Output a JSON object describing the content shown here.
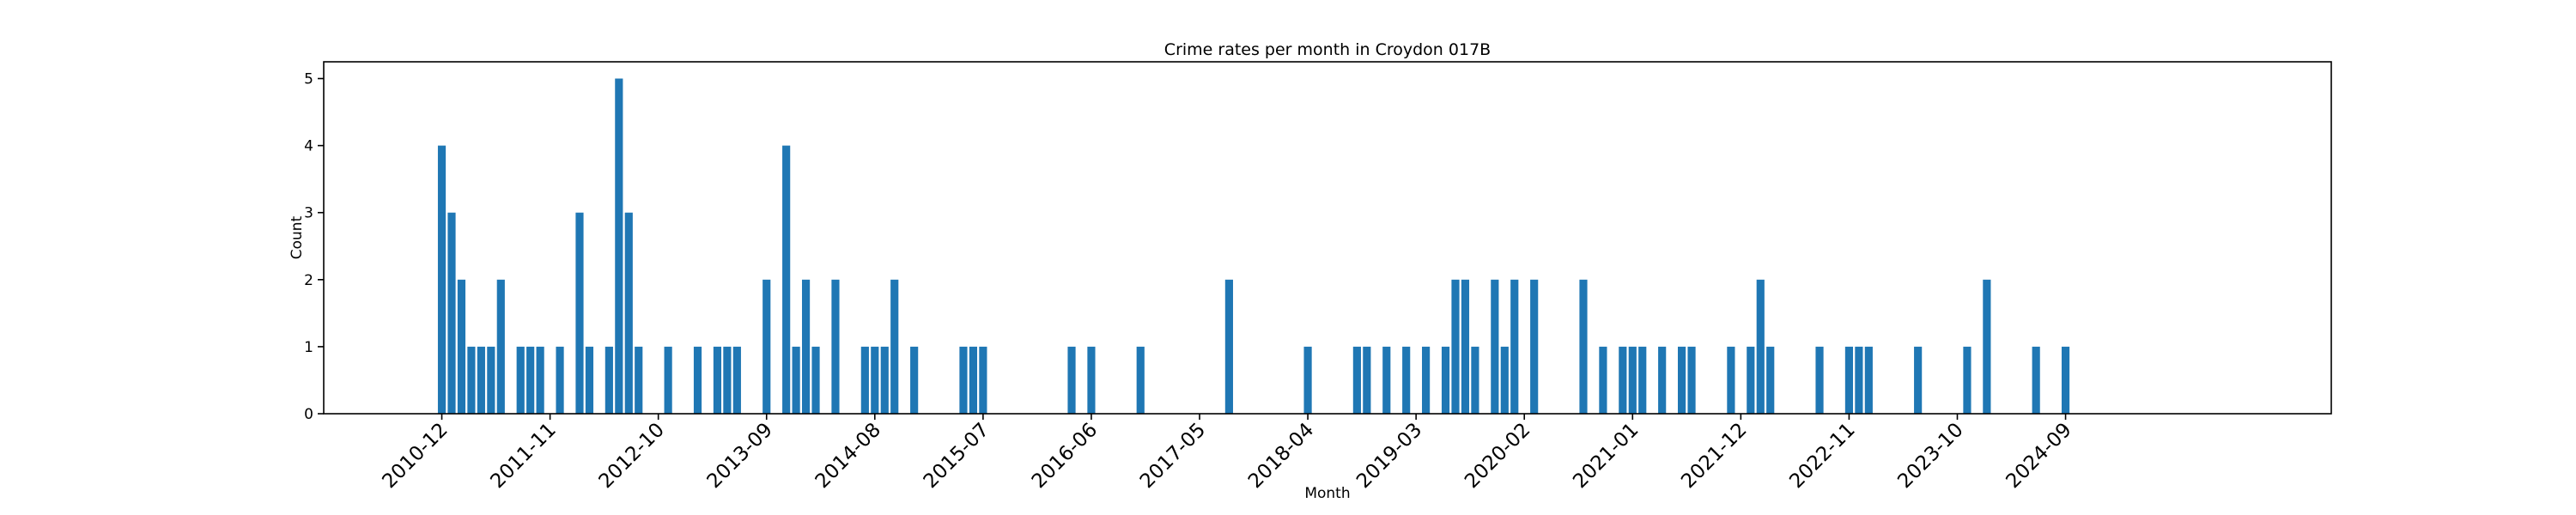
{
  "chart_data": {
    "type": "bar",
    "title": "Crime rates per month in Croydon 017B",
    "xlabel": "Month",
    "ylabel": "Count",
    "ylim": [
      0,
      5.25
    ],
    "xlim": [
      "2009-12",
      "2026-12"
    ],
    "yticks": [
      0,
      1,
      2,
      3,
      4,
      5
    ],
    "xticks": [
      "2010-12",
      "2011-11",
      "2012-10",
      "2013-09",
      "2014-08",
      "2015-07",
      "2016-06",
      "2017-05",
      "2018-04",
      "2019-03",
      "2020-02",
      "2021-01",
      "2021-12",
      "2022-11",
      "2023-10",
      "2024-09"
    ],
    "grid": false,
    "legend": "none",
    "bar_color": "#1f77b4",
    "points": [
      {
        "x": "2010-12",
        "y": 4
      },
      {
        "x": "2011-01",
        "y": 3
      },
      {
        "x": "2011-02",
        "y": 2
      },
      {
        "x": "2011-03",
        "y": 1
      },
      {
        "x": "2011-04",
        "y": 1
      },
      {
        "x": "2011-05",
        "y": 1
      },
      {
        "x": "2011-06",
        "y": 2
      },
      {
        "x": "2011-08",
        "y": 1
      },
      {
        "x": "2011-09",
        "y": 1
      },
      {
        "x": "2011-10",
        "y": 1
      },
      {
        "x": "2011-12",
        "y": 1
      },
      {
        "x": "2012-02",
        "y": 3
      },
      {
        "x": "2012-03",
        "y": 1
      },
      {
        "x": "2012-05",
        "y": 1
      },
      {
        "x": "2012-06",
        "y": 5
      },
      {
        "x": "2012-07",
        "y": 3
      },
      {
        "x": "2012-08",
        "y": 1
      },
      {
        "x": "2012-11",
        "y": 1
      },
      {
        "x": "2013-02",
        "y": 1
      },
      {
        "x": "2013-04",
        "y": 1
      },
      {
        "x": "2013-05",
        "y": 1
      },
      {
        "x": "2013-06",
        "y": 1
      },
      {
        "x": "2013-09",
        "y": 2
      },
      {
        "x": "2013-11",
        "y": 4
      },
      {
        "x": "2013-12",
        "y": 1
      },
      {
        "x": "2014-01",
        "y": 2
      },
      {
        "x": "2014-02",
        "y": 1
      },
      {
        "x": "2014-04",
        "y": 2
      },
      {
        "x": "2014-07",
        "y": 1
      },
      {
        "x": "2014-08",
        "y": 1
      },
      {
        "x": "2014-09",
        "y": 1
      },
      {
        "x": "2014-10",
        "y": 2
      },
      {
        "x": "2014-12",
        "y": 1
      },
      {
        "x": "2015-05",
        "y": 1
      },
      {
        "x": "2015-06",
        "y": 1
      },
      {
        "x": "2015-07",
        "y": 1
      },
      {
        "x": "2016-04",
        "y": 1
      },
      {
        "x": "2016-06",
        "y": 1
      },
      {
        "x": "2016-11",
        "y": 1
      },
      {
        "x": "2017-08",
        "y": 2
      },
      {
        "x": "2018-04",
        "y": 1
      },
      {
        "x": "2018-09",
        "y": 1
      },
      {
        "x": "2018-10",
        "y": 1
      },
      {
        "x": "2018-12",
        "y": 1
      },
      {
        "x": "2019-02",
        "y": 1
      },
      {
        "x": "2019-04",
        "y": 1
      },
      {
        "x": "2019-06",
        "y": 1
      },
      {
        "x": "2019-07",
        "y": 2
      },
      {
        "x": "2019-08",
        "y": 2
      },
      {
        "x": "2019-09",
        "y": 1
      },
      {
        "x": "2019-11",
        "y": 2
      },
      {
        "x": "2019-12",
        "y": 1
      },
      {
        "x": "2020-01",
        "y": 2
      },
      {
        "x": "2020-03",
        "y": 2
      },
      {
        "x": "2020-08",
        "y": 2
      },
      {
        "x": "2020-10",
        "y": 1
      },
      {
        "x": "2020-12",
        "y": 1
      },
      {
        "x": "2021-01",
        "y": 1
      },
      {
        "x": "2021-02",
        "y": 1
      },
      {
        "x": "2021-04",
        "y": 1
      },
      {
        "x": "2021-06",
        "y": 1
      },
      {
        "x": "2021-07",
        "y": 1
      },
      {
        "x": "2021-11",
        "y": 1
      },
      {
        "x": "2022-01",
        "y": 1
      },
      {
        "x": "2022-02",
        "y": 2
      },
      {
        "x": "2022-03",
        "y": 1
      },
      {
        "x": "2022-08",
        "y": 1
      },
      {
        "x": "2022-11",
        "y": 1
      },
      {
        "x": "2022-12",
        "y": 1
      },
      {
        "x": "2023-01",
        "y": 1
      },
      {
        "x": "2023-06",
        "y": 1
      },
      {
        "x": "2023-11",
        "y": 1
      },
      {
        "x": "2024-01",
        "y": 2
      },
      {
        "x": "2024-06",
        "y": 1
      },
      {
        "x": "2024-09",
        "y": 1
      }
    ]
  }
}
